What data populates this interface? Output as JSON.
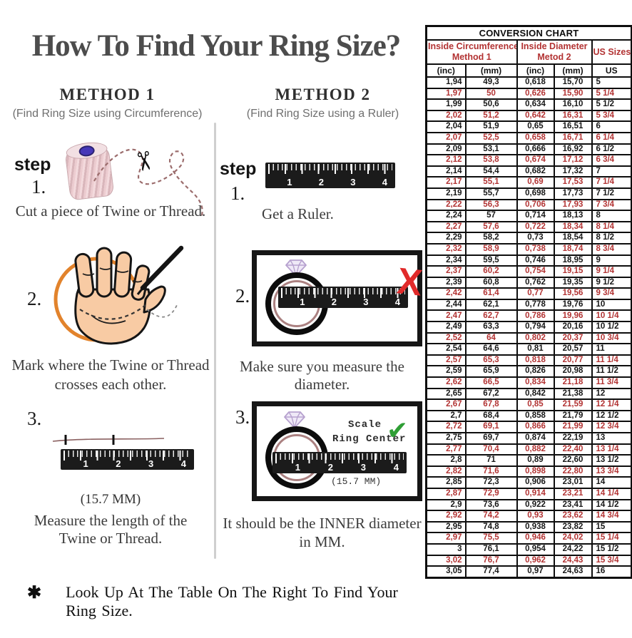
{
  "title": "How To Find Your Ring Size?",
  "methods": {
    "method1": {
      "heading": "METHOD 1",
      "subheading": "(Find Ring Size using Circumference)",
      "step_label": "step",
      "steps": [
        {
          "num": "1.",
          "line1": "Cut a piece of Twine or Thread."
        },
        {
          "num": "2.",
          "line1": "Mark where the Twine or Thread",
          "line2": "crosses each other."
        },
        {
          "num": "3.",
          "note": "(15.7 MM)",
          "line1": "Measure the length of the",
          "line2": "Twine or Thread."
        }
      ]
    },
    "method2": {
      "heading": "METHOD 2",
      "subheading": "(Find Ring Size using a Ruler)",
      "step_label": "step",
      "steps": [
        {
          "num": "1.",
          "line1": "Get a Ruler."
        },
        {
          "num": "2.",
          "line1": "Make sure you measure the diameter."
        },
        {
          "num": "3.",
          "scale1": "Scale",
          "scale2": "Ring Center",
          "note": "(15.7 MM)",
          "line1": "It should be the INNER diameter",
          "line2": "in MM."
        }
      ]
    }
  },
  "ruler_numbers": [
    "1",
    "2",
    "3",
    "4"
  ],
  "footnote": {
    "bullet": "✱",
    "text": "Look Up At The Table On The Right To Find Your Ring Size."
  },
  "table": {
    "title": "CONVERSION CHART",
    "group_headers": [
      {
        "line1": "Inside Circumference",
        "line2": "Method 1"
      },
      {
        "line1": "Inside Diameter",
        "line2": "Metod 2"
      },
      {
        "label": "US Sizes"
      }
    ],
    "sub_headers": [
      "(inc)",
      "(mm)",
      "(inc)",
      "(mm)",
      "US"
    ],
    "rows": [
      [
        "1,94",
        "49,3",
        "0,618",
        "15,70",
        "5"
      ],
      [
        "1,97",
        "50",
        "0,626",
        "15,90",
        "5 1/4"
      ],
      [
        "1,99",
        "50,6",
        "0,634",
        "16,10",
        "5 1/2"
      ],
      [
        "2,02",
        "51,2",
        "0,642",
        "16,31",
        "5 3/4"
      ],
      [
        "2,04",
        "51,9",
        "0,65",
        "16,51",
        "6"
      ],
      [
        "2,07",
        "52,5",
        "0,658",
        "16,71",
        "6 1/4"
      ],
      [
        "2,09",
        "53,1",
        "0,666",
        "16,92",
        "6 1/2"
      ],
      [
        "2,12",
        "53,8",
        "0,674",
        "17,12",
        "6 3/4"
      ],
      [
        "2,14",
        "54,4",
        "0,682",
        "17,32",
        "7"
      ],
      [
        "2,17",
        "55,1",
        "0,69",
        "17,53",
        "7 1/4"
      ],
      [
        "2,19",
        "55,7",
        "0,698",
        "17,73",
        "7 1/2"
      ],
      [
        "2,22",
        "56,3",
        "0,706",
        "17,93",
        "7 3/4"
      ],
      [
        "2,24",
        "57",
        "0,714",
        "18,13",
        "8"
      ],
      [
        "2,27",
        "57,6",
        "0,722",
        "18,34",
        "8 1/4"
      ],
      [
        "2,29",
        "58,2",
        "0,73",
        "18,54",
        "8 1/2"
      ],
      [
        "2,32",
        "58,9",
        "0,738",
        "18,74",
        "8 3/4"
      ],
      [
        "2,34",
        "59,5",
        "0,746",
        "18,95",
        "9"
      ],
      [
        "2,37",
        "60,2",
        "0,754",
        "19,15",
        "9 1/4"
      ],
      [
        "2,39",
        "60,8",
        "0,762",
        "19,35",
        "9 1/2"
      ],
      [
        "2,42",
        "61,4",
        "0,77",
        "19,56",
        "9 3/4"
      ],
      [
        "2,44",
        "62,1",
        "0,778",
        "19,76",
        "10"
      ],
      [
        "2,47",
        "62,7",
        "0,786",
        "19,96",
        "10 1/4"
      ],
      [
        "2,49",
        "63,3",
        "0,794",
        "20,16",
        "10 1/2"
      ],
      [
        "2,52",
        "64",
        "0,802",
        "20,37",
        "10 3/4"
      ],
      [
        "2,54",
        "64,6",
        "0,81",
        "20,57",
        "11"
      ],
      [
        "2,57",
        "65,3",
        "0,818",
        "20,77",
        "11 1/4"
      ],
      [
        "2,59",
        "65,9",
        "0,826",
        "20,98",
        "11 1/2"
      ],
      [
        "2,62",
        "66,5",
        "0,834",
        "21,18",
        "11 3/4"
      ],
      [
        "2,65",
        "67,2",
        "0,842",
        "21,38",
        "12"
      ],
      [
        "2,67",
        "67,8",
        "0,85",
        "21,59",
        "12 1/4"
      ],
      [
        "2,7",
        "68,4",
        "0,858",
        "21,79",
        "12 1/2"
      ],
      [
        "2,72",
        "69,1",
        "0,866",
        "21,99",
        "12 3/4"
      ],
      [
        "2,75",
        "69,7",
        "0,874",
        "22,19",
        "13"
      ],
      [
        "2,77",
        "70,4",
        "0,882",
        "22,40",
        "13 1/4"
      ],
      [
        "2,8",
        "71",
        "0,89",
        "22,60",
        "13 1/2"
      ],
      [
        "2,82",
        "71,6",
        "0,898",
        "22,80",
        "13 3/4"
      ],
      [
        "2,85",
        "72,3",
        "0,906",
        "23,01",
        "14"
      ],
      [
        "2,87",
        "72,9",
        "0,914",
        "23,21",
        "14 1/4"
      ],
      [
        "2,9",
        "73,6",
        "0,922",
        "23,41",
        "14 1/2"
      ],
      [
        "2,92",
        "74,2",
        "0,93",
        "23,62",
        "14 3/4"
      ],
      [
        "2,95",
        "74,8",
        "0,938",
        "23,82",
        "15"
      ],
      [
        "2,97",
        "75,5",
        "0,946",
        "24,02",
        "15 1/4"
      ],
      [
        "3",
        "76,1",
        "0,954",
        "24,22",
        "15 1/2"
      ],
      [
        "3,02",
        "76,7",
        "0,962",
        "24,43",
        "15 3/4"
      ],
      [
        "3,05",
        "77,4",
        "0,97",
        "24,63",
        "16"
      ]
    ]
  },
  "colors": {
    "table_red": "#b23232",
    "x_red": "#e12a2a",
    "check_green": "#2f9e35",
    "circle_orange": "#e2832c",
    "skin": "#f8cba4",
    "diamond_lavender": "#b7a2cf"
  }
}
